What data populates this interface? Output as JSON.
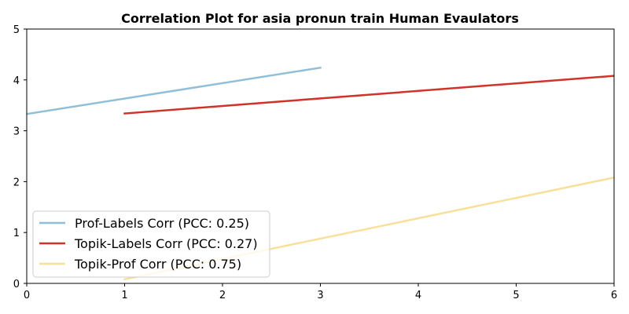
{
  "chart_data": {
    "type": "line",
    "title": "Correlation Plot for asia pronun train Human Evaulators",
    "xlabel": "",
    "ylabel": "",
    "xlim": [
      0,
      6
    ],
    "ylim": [
      0,
      5
    ],
    "xticks": [
      "0",
      "1",
      "2",
      "3",
      "4",
      "5",
      "6"
    ],
    "yticks": [
      "0",
      "1",
      "2",
      "3",
      "4",
      "5"
    ],
    "grid": false,
    "legend_position": "lower-left",
    "series": [
      {
        "name": "Prof-Labels Corr (PCC: 0.25)",
        "color": "#92bfd8",
        "x": [
          0,
          3
        ],
        "y": [
          3.33,
          4.24
        ]
      },
      {
        "name": "Topik-Labels Corr (PCC: 0.27)",
        "color": "#d23228",
        "x": [
          1,
          6
        ],
        "y": [
          3.34,
          4.08
        ]
      },
      {
        "name": "Topik-Prof Corr (PCC: 0.75)",
        "color": "#f9e09a",
        "x": [
          1,
          6
        ],
        "y": [
          0.08,
          2.08
        ]
      }
    ]
  }
}
